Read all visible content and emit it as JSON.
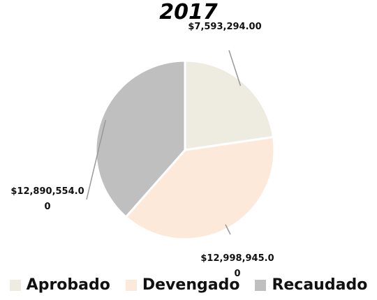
{
  "chart_data": {
    "type": "pie",
    "title": "2017",
    "categories": [
      "Aprobado",
      "Devengado",
      "Recaudado"
    ],
    "values": [
      7593294,
      12998945,
      12890554
    ],
    "value_labels": [
      "$7,593,294.00",
      "$12,998,945.00",
      "$12,890,554.00"
    ],
    "colors": [
      "#eeece1",
      "#fde9d9",
      "#bfbfbf"
    ],
    "legend": "bottom"
  }
}
